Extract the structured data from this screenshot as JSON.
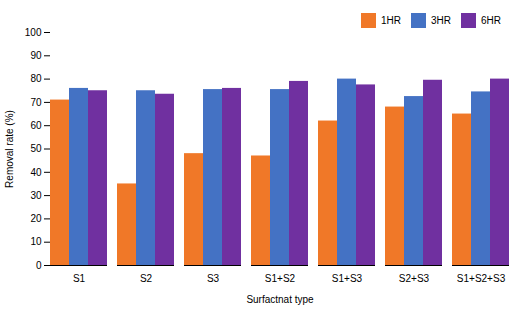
{
  "chart_data": {
    "type": "bar",
    "categories": [
      "S1",
      "S2",
      "S3",
      "S1+S2",
      "S1+S3",
      "S2+S3",
      "S1+S2+S3"
    ],
    "series": [
      {
        "name": "1HR",
        "color": "#F07828",
        "values": [
          71,
          35,
          48,
          47,
          62,
          68,
          65
        ]
      },
      {
        "name": "3HR",
        "color": "#4472C4",
        "values": [
          76,
          75,
          75.5,
          75.5,
          80,
          72.5,
          74.5
        ]
      },
      {
        "name": "6HR",
        "color": "#7030A0",
        "values": [
          75,
          73.5,
          76,
          79,
          77.5,
          79.5,
          80
        ]
      }
    ],
    "xlabel": "Surfactnat type",
    "ylabel": "Removal rate (%)",
    "ylim": [
      0,
      100
    ],
    "yticks": [
      0,
      10,
      20,
      30,
      40,
      50,
      60,
      70,
      80,
      90,
      100
    ],
    "grid": false,
    "legend": "upper right"
  }
}
